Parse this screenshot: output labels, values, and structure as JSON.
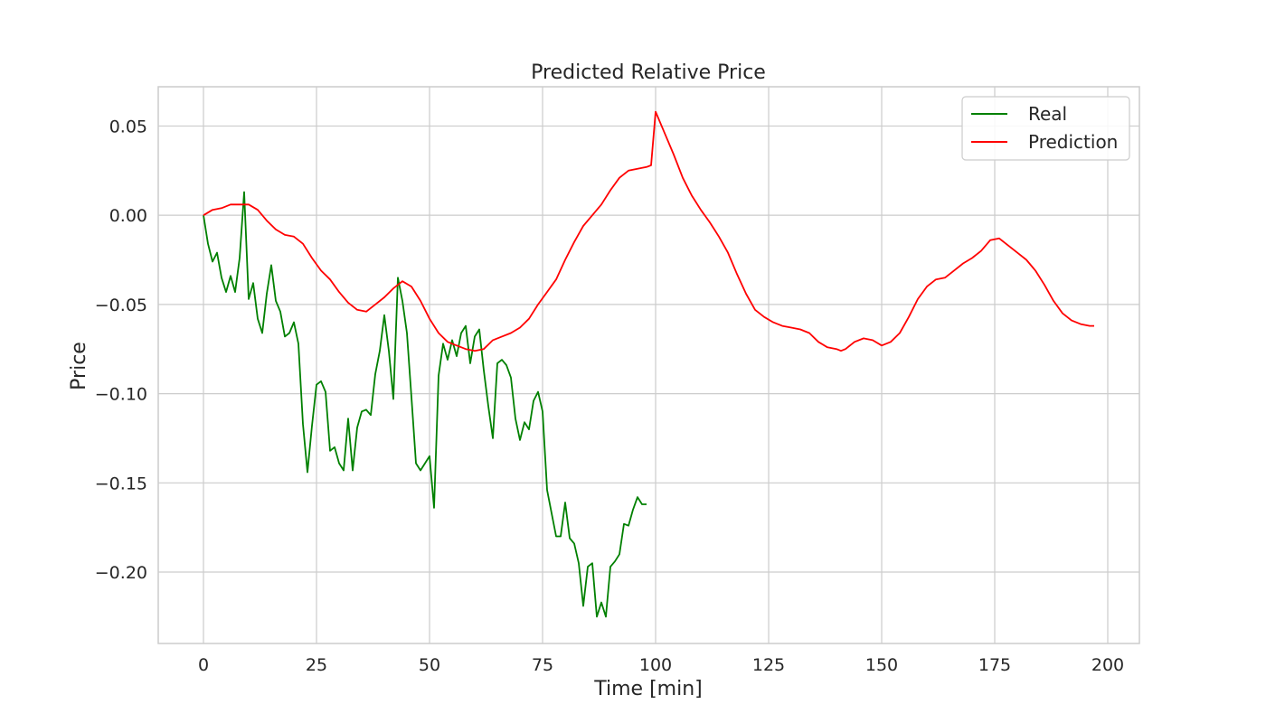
{
  "chart_data": {
    "type": "line",
    "title": "Predicted Relative Price",
    "xlabel": "Time [min]",
    "ylabel": "Price",
    "xlim": [
      -10,
      207
    ],
    "ylim": [
      -0.24,
      0.072
    ],
    "xticks": [
      0,
      25,
      50,
      75,
      100,
      125,
      150,
      175,
      200
    ],
    "xtick_labels": [
      "0",
      "25",
      "50",
      "75",
      "100",
      "125",
      "150",
      "175",
      "200"
    ],
    "yticks": [
      0.05,
      0.0,
      -0.05,
      -0.1,
      -0.15,
      -0.2
    ],
    "ytick_labels": [
      "0.05",
      "0.00",
      "−0.05",
      "−0.10",
      "−0.15",
      "−0.20"
    ],
    "grid": true,
    "legend_position": "top-right",
    "series": [
      {
        "name": "Real",
        "color": "#008000",
        "x": [
          0,
          1,
          2,
          3,
          4,
          5,
          6,
          7,
          8,
          9,
          10,
          11,
          12,
          13,
          14,
          15,
          16,
          17,
          18,
          19,
          20,
          21,
          22,
          23,
          24,
          25,
          26,
          27,
          28,
          29,
          30,
          31,
          32,
          33,
          34,
          35,
          36,
          37,
          38,
          39,
          40,
          41,
          42,
          43,
          44,
          45,
          46,
          47,
          48,
          49,
          50,
          51,
          52,
          53,
          54,
          55,
          56,
          57,
          58,
          59,
          60,
          61,
          62,
          63,
          64,
          65,
          66,
          67,
          68,
          69,
          70,
          71,
          72,
          73,
          74,
          75,
          76,
          77,
          78,
          79,
          80,
          81,
          82,
          83,
          84,
          85,
          86,
          87,
          88,
          89,
          90,
          91,
          92,
          93,
          94,
          95,
          96,
          97,
          98
        ],
        "y": [
          0.0,
          -0.016,
          -0.026,
          -0.021,
          -0.035,
          -0.043,
          -0.034,
          -0.043,
          -0.024,
          0.013,
          -0.047,
          -0.038,
          -0.058,
          -0.066,
          -0.044,
          -0.028,
          -0.048,
          -0.054,
          -0.068,
          -0.066,
          -0.06,
          -0.072,
          -0.117,
          -0.144,
          -0.118,
          -0.095,
          -0.093,
          -0.099,
          -0.132,
          -0.13,
          -0.139,
          -0.143,
          -0.114,
          -0.143,
          -0.119,
          -0.11,
          -0.109,
          -0.112,
          -0.089,
          -0.076,
          -0.056,
          -0.076,
          -0.103,
          -0.035,
          -0.048,
          -0.066,
          -0.102,
          -0.139,
          -0.143,
          -0.139,
          -0.135,
          -0.164,
          -0.09,
          -0.072,
          -0.081,
          -0.07,
          -0.079,
          -0.066,
          -0.062,
          -0.083,
          -0.068,
          -0.064,
          -0.087,
          -0.107,
          -0.125,
          -0.083,
          -0.081,
          -0.084,
          -0.091,
          -0.114,
          -0.126,
          -0.116,
          -0.12,
          -0.104,
          -0.099,
          -0.11,
          -0.154,
          -0.167,
          -0.18,
          -0.18,
          -0.161,
          -0.181,
          -0.184,
          -0.195,
          -0.219,
          -0.197,
          -0.195,
          -0.225,
          -0.217,
          -0.225,
          -0.197,
          -0.194,
          -0.19,
          -0.173,
          -0.174,
          -0.165,
          -0.158,
          -0.162,
          -0.162
        ]
      },
      {
        "name": "Prediction",
        "color": "#ff0000",
        "x": [
          0,
          2,
          4,
          6,
          8,
          10,
          12,
          14,
          16,
          18,
          20,
          22,
          24,
          26,
          28,
          30,
          32,
          34,
          36,
          38,
          40,
          42,
          43,
          44,
          46,
          48,
          50,
          52,
          54,
          56,
          58,
          60,
          62,
          64,
          66,
          68,
          70,
          72,
          74,
          76,
          78,
          80,
          82,
          84,
          86,
          88,
          90,
          92,
          94,
          96,
          98,
          99,
          100,
          102,
          104,
          106,
          108,
          110,
          112,
          114,
          116,
          118,
          120,
          122,
          124,
          126,
          128,
          130,
          132,
          134,
          136,
          138,
          140,
          141,
          142,
          144,
          146,
          148,
          150,
          152,
          154,
          156,
          158,
          160,
          162,
          164,
          166,
          168,
          170,
          172,
          174,
          176,
          178,
          180,
          182,
          184,
          186,
          188,
          190,
          192,
          194,
          196,
          197
        ],
        "y": [
          0.0,
          0.003,
          0.004,
          0.006,
          0.006,
          0.006,
          0.003,
          -0.003,
          -0.008,
          -0.011,
          -0.012,
          -0.016,
          -0.024,
          -0.031,
          -0.036,
          -0.043,
          -0.049,
          -0.053,
          -0.054,
          -0.05,
          -0.046,
          -0.041,
          -0.039,
          -0.037,
          -0.04,
          -0.048,
          -0.058,
          -0.066,
          -0.071,
          -0.073,
          -0.075,
          -0.076,
          -0.075,
          -0.07,
          -0.068,
          -0.066,
          -0.063,
          -0.058,
          -0.05,
          -0.043,
          -0.036,
          -0.025,
          -0.015,
          -0.006,
          0.0,
          0.006,
          0.014,
          0.021,
          0.025,
          0.026,
          0.027,
          0.028,
          0.058,
          0.046,
          0.034,
          0.021,
          0.011,
          0.003,
          -0.004,
          -0.012,
          -0.021,
          -0.033,
          -0.044,
          -0.053,
          -0.057,
          -0.06,
          -0.062,
          -0.063,
          -0.064,
          -0.066,
          -0.071,
          -0.074,
          -0.075,
          -0.076,
          -0.075,
          -0.071,
          -0.069,
          -0.07,
          -0.073,
          -0.071,
          -0.066,
          -0.057,
          -0.047,
          -0.04,
          -0.036,
          -0.035,
          -0.031,
          -0.027,
          -0.024,
          -0.02,
          -0.014,
          -0.013,
          -0.017,
          -0.021,
          -0.025,
          -0.031,
          -0.039,
          -0.048,
          -0.055,
          -0.059,
          -0.061,
          -0.062,
          -0.062
        ]
      }
    ]
  }
}
